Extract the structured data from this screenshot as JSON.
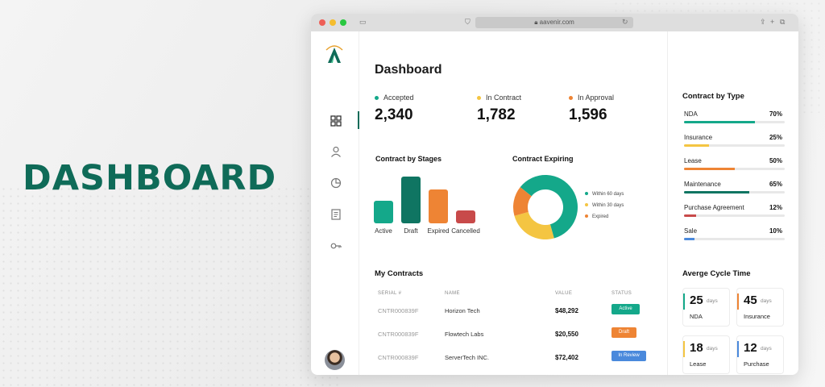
{
  "hero": {
    "title": "DASHBOARD"
  },
  "browser": {
    "url": "aavenir.com"
  },
  "colors": {
    "teal": "#14a88a",
    "dark_teal": "#0f7562",
    "yellow": "#f4c542",
    "orange": "#ee8434",
    "red": "#c84a4a",
    "blue": "#4a89dc",
    "brand": "#0f6b58"
  },
  "sidebar": {
    "items": [
      {
        "icon": "grid-icon",
        "active": true
      },
      {
        "icon": "user-icon"
      },
      {
        "icon": "pie-chart-icon"
      },
      {
        "icon": "document-icon"
      },
      {
        "icon": "key-icon"
      }
    ],
    "avatar": "avatar"
  },
  "main": {
    "title": "Dashboard",
    "stats": [
      {
        "label": "Accepted",
        "value": "2,340",
        "color": "#14a88a"
      },
      {
        "label": "In Contract",
        "value": "1,782",
        "color": "#f4c542"
      },
      {
        "label": "In Approval",
        "value": "1,596",
        "color": "#ee8434"
      }
    ],
    "stages_title": "Contract by Stages",
    "expiring_title": "Contract Expiring",
    "contracts_title": "My Contracts",
    "table": {
      "headers": [
        "SERIAL #",
        "NAME",
        "VALUE",
        "STATUS"
      ],
      "rows": [
        {
          "serial": "CNTR000839F",
          "name": "Horizon Tech",
          "value": "$48,292",
          "status": "Active"
        },
        {
          "serial": "CNTR000839F",
          "name": "Flowtech Labs",
          "value": "$20,550",
          "status": "Draft"
        },
        {
          "serial": "CNTR000839F",
          "name": "ServerTech INC.",
          "value": "$72,402",
          "status": "In Review"
        }
      ]
    }
  },
  "chart_data": [
    {
      "type": "bar",
      "title": "Contract by Stages",
      "categories": [
        "Active",
        "Draft",
        "Expired",
        "Cancelled"
      ],
      "values": [
        28,
        58,
        42,
        16
      ],
      "colors": [
        "#14a88a",
        "#0f7562",
        "#ee8434",
        "#c84a4a"
      ],
      "ylim": [
        0,
        60
      ]
    },
    {
      "type": "pie",
      "title": "Contract Expiring",
      "labels": [
        "Within 60 days",
        "Within 30 days",
        "Expired"
      ],
      "values": [
        60,
        25,
        15
      ],
      "colors": [
        "#14a88a",
        "#f4c542",
        "#ee8434"
      ],
      "legend": "right"
    }
  ],
  "right": {
    "type_title": "Contract  by Type",
    "types": [
      {
        "label": "NDA",
        "pct": "70%",
        "value": 0.7,
        "color": "#14a88a"
      },
      {
        "label": "Insurance",
        "pct": "25%",
        "value": 0.25,
        "color": "#f4c542"
      },
      {
        "label": "Lease",
        "pct": "50%",
        "value": 0.5,
        "color": "#ee8434"
      },
      {
        "label": "Maintenance",
        "pct": "65%",
        "value": 0.65,
        "color": "#0f7562"
      },
      {
        "label": "Purchase Agreement",
        "pct": "12%",
        "value": 0.12,
        "color": "#c84a4a"
      },
      {
        "label": "Sale",
        "pct": "10%",
        "value": 0.1,
        "color": "#4a89dc"
      }
    ],
    "cycle_title": "Averge Cycle Time",
    "cycles": [
      {
        "value": "25",
        "unit": "days",
        "label": "NDA",
        "color": "#14a88a"
      },
      {
        "value": "45",
        "unit": "days",
        "label": "Insurance",
        "color": "#ee8434"
      },
      {
        "value": "18",
        "unit": "days",
        "label": "Lease",
        "color": "#f4c542"
      },
      {
        "value": "12",
        "unit": "days",
        "label": "Purchase",
        "color": "#4a89dc"
      }
    ]
  }
}
